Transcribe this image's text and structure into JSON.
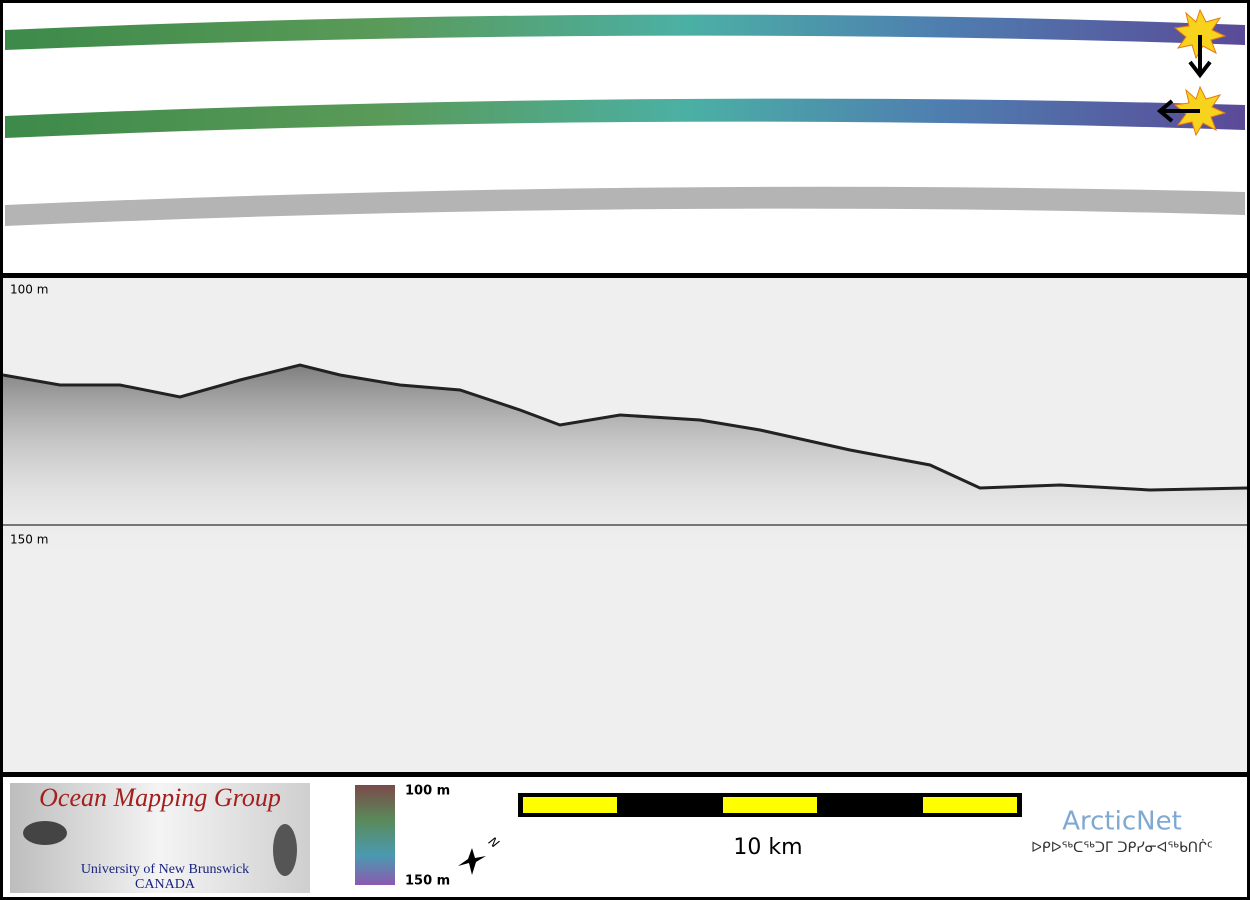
{
  "profile": {
    "depth_labels": [
      "100 m",
      "150 m"
    ]
  },
  "legend": {
    "logo_title": "Ocean Mapping Group",
    "logo_subtitle": "University of New Brunswick",
    "logo_country": "CANADA",
    "colorbar_labels": [
      "100 m",
      "150 m"
    ],
    "north_label": "N",
    "scale_label": "10 km",
    "partner_name": "ArcticNet",
    "partner_name_inuktitut": "ᐅᑭᐅᖅᑕᖅᑐᒥ ᑐᑭᓯᓂᐊᖅᑲᑎᒌᑦ"
  }
}
